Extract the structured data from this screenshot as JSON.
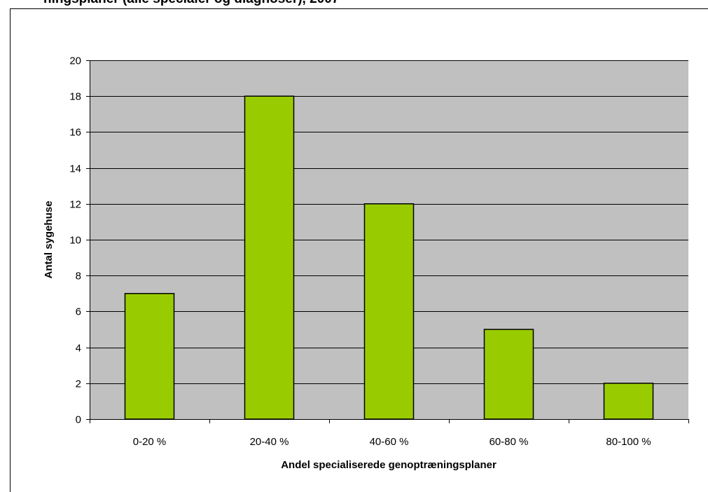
{
  "chart_data": {
    "type": "bar",
    "title": "ningsplaner (alle specialer og diagnoser), 2007",
    "categories": [
      "0-20 %",
      "20-40 %",
      "40-60 %",
      "60-80 %",
      "80-100 %"
    ],
    "values": [
      7,
      18,
      12,
      5,
      2
    ],
    "color": "#99cc00",
    "x_label": "Andel specialiserede genoptræningsplaner",
    "y_label": "Antal sygehuse",
    "ylim": [
      0,
      20
    ],
    "yticks": [
      0,
      2,
      4,
      6,
      8,
      10,
      12,
      14,
      16,
      18,
      20
    ],
    "grid": true
  }
}
